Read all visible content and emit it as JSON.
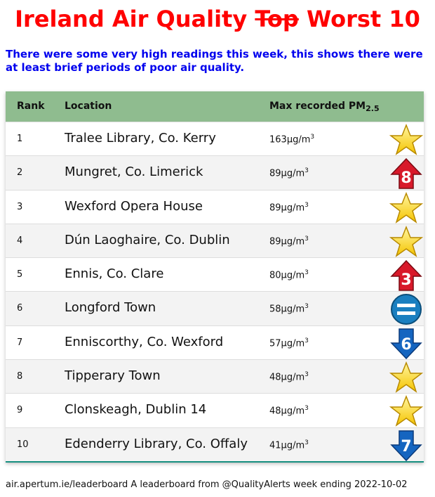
{
  "title": {
    "prefix": "Ireland Air Quality ",
    "struck": "Top",
    "suffix": " Worst 10"
  },
  "subtitle": "There were some very high readings this week, this shows there were at least brief periods of poor air quality.",
  "table": {
    "headers": {
      "rank": "Rank",
      "location": "Location",
      "max": "Max recorded PM",
      "max_sub": "2.5"
    },
    "unit": "µg/m",
    "unit_sup": "3",
    "rows": [
      {
        "rank": "1",
        "location": "Tralee Library, Co. Kerry",
        "value": "163",
        "badge": "star-icon",
        "badge_text": ""
      },
      {
        "rank": "2",
        "location": "Mungret, Co. Limerick",
        "value": "89",
        "badge": "arrow-up-icon",
        "badge_text": "8"
      },
      {
        "rank": "3",
        "location": "Wexford Opera House",
        "value": "89",
        "badge": "star-icon",
        "badge_text": ""
      },
      {
        "rank": "4",
        "location": "Dún Laoghaire, Co. Dublin",
        "value": "89",
        "badge": "star-icon",
        "badge_text": ""
      },
      {
        "rank": "5",
        "location": "Ennis, Co. Clare",
        "value": "80",
        "badge": "arrow-up-icon",
        "badge_text": "3"
      },
      {
        "rank": "6",
        "location": "Longford Town",
        "value": "58",
        "badge": "equal-icon",
        "badge_text": ""
      },
      {
        "rank": "7",
        "location": "Enniscorthy, Co. Wexford",
        "value": "57",
        "badge": "arrow-down-icon",
        "badge_text": "6"
      },
      {
        "rank": "8",
        "location": "Tipperary Town",
        "value": "48",
        "badge": "star-icon",
        "badge_text": ""
      },
      {
        "rank": "9",
        "location": "Clonskeagh, Dublin 14",
        "value": "48",
        "badge": "star-icon",
        "badge_text": ""
      },
      {
        "rank": "10",
        "location": "Edenderry Library, Co. Offaly",
        "value": "41",
        "badge": "arrow-down-icon",
        "badge_text": "7"
      }
    ]
  },
  "footer": "air.apertum.ie/leaderboard A leaderboard from @QualityAlerts week ending 2022-10-02",
  "colors": {
    "title": "#ff0000",
    "subtitle": "#0000ee",
    "header_bg": "#8fbc8f",
    "up": "#d8192a",
    "down": "#1565c0",
    "star": "#f5c400"
  }
}
